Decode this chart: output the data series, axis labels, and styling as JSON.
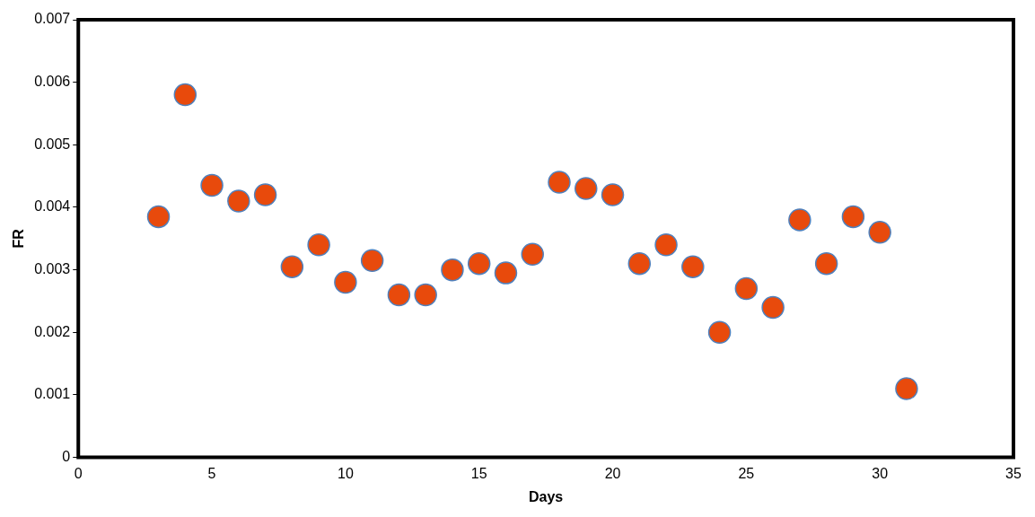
{
  "chart_data": {
    "type": "scatter",
    "xlabel": "Days",
    "ylabel": "FR",
    "marker": "circle",
    "grid": false,
    "legend": false,
    "xlim": [
      0,
      35
    ],
    "xticks": [
      0,
      5,
      10,
      15,
      20,
      25,
      30,
      35
    ],
    "ylim": [
      0,
      0.007
    ],
    "yticks": [
      0,
      0.001,
      0.002,
      0.003,
      0.004,
      0.005,
      0.006,
      0.007
    ],
    "series": [
      {
        "color": "#e84a0c",
        "x": [
          3,
          4,
          5,
          6,
          7,
          8,
          9,
          10,
          11,
          12,
          13,
          14,
          15,
          16,
          17,
          18,
          19,
          20,
          21,
          22,
          23,
          24,
          25,
          26,
          27,
          28,
          29,
          30,
          31
        ],
        "values": [
          0.00385,
          0.0058,
          0.00435,
          0.0041,
          0.0042,
          0.00305,
          0.0034,
          0.0028,
          0.00315,
          0.0026,
          0.0026,
          0.003,
          0.0031,
          0.00295,
          0.00325,
          0.0044,
          0.0043,
          0.0042,
          0.0031,
          0.0034,
          0.00305,
          0.002,
          0.0027,
          0.0024,
          0.0038,
          0.0031,
          0.00385,
          0.0036,
          0.0011
        ]
      }
    ]
  }
}
